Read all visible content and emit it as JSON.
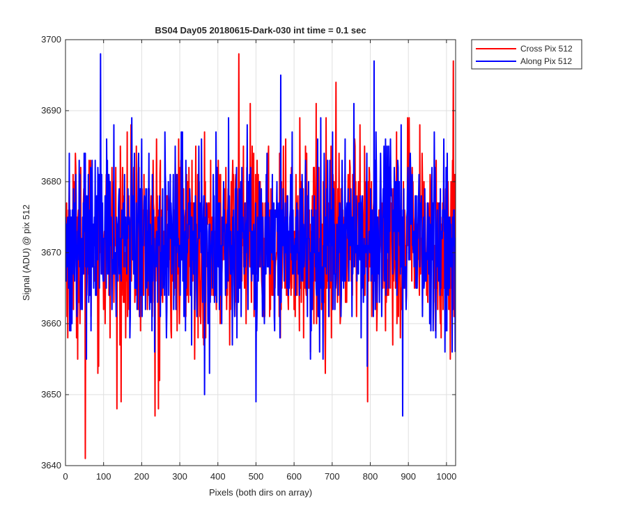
{
  "chart_data": {
    "type": "line",
    "title": "BS04 Day05 20180615-Dark-030 int time = 0.1 sec",
    "xlabel": "Pixels (both dirs on array)",
    "ylabel": "Signal (ADU) @ pix 512",
    "xlim": [
      0,
      1024
    ],
    "ylim": [
      3640,
      3700
    ],
    "xticks": [
      0,
      100,
      200,
      300,
      400,
      500,
      600,
      700,
      800,
      900,
      1000
    ],
    "yticks": [
      3640,
      3650,
      3660,
      3670,
      3680,
      3690,
      3700
    ],
    "grid": true,
    "legend_position": "outside-top-right",
    "series": [
      {
        "name": "Cross Pix 512",
        "color": "#ff0000",
        "stats": {
          "count": 1024,
          "mean": 3671.5,
          "std": 6.5,
          "min": 3641,
          "max": 3698
        },
        "highlights": [
          {
            "x": 0,
            "y": 3667
          },
          {
            "x": 52,
            "y": 3641
          },
          {
            "x": 135,
            "y": 3648
          },
          {
            "x": 235,
            "y": 3647
          },
          {
            "x": 244,
            "y": 3648
          },
          {
            "x": 455,
            "y": 3698
          },
          {
            "x": 710,
            "y": 3694
          },
          {
            "x": 793,
            "y": 3649
          },
          {
            "x": 1010,
            "y": 3655
          },
          {
            "x": 1018,
            "y": 3697
          }
        ]
      },
      {
        "name": "Along Pix 512",
        "color": "#0000ff",
        "stats": {
          "count": 1024,
          "mean": 3672,
          "std": 6.3,
          "min": 3647,
          "max": 3698
        },
        "highlights": [
          {
            "x": 0,
            "y": 3675
          },
          {
            "x": 92,
            "y": 3698
          },
          {
            "x": 365,
            "y": 3650
          },
          {
            "x": 500,
            "y": 3649
          },
          {
            "x": 565,
            "y": 3695
          },
          {
            "x": 810,
            "y": 3697
          },
          {
            "x": 885,
            "y": 3647
          },
          {
            "x": 1022,
            "y": 3672
          }
        ]
      }
    ]
  }
}
